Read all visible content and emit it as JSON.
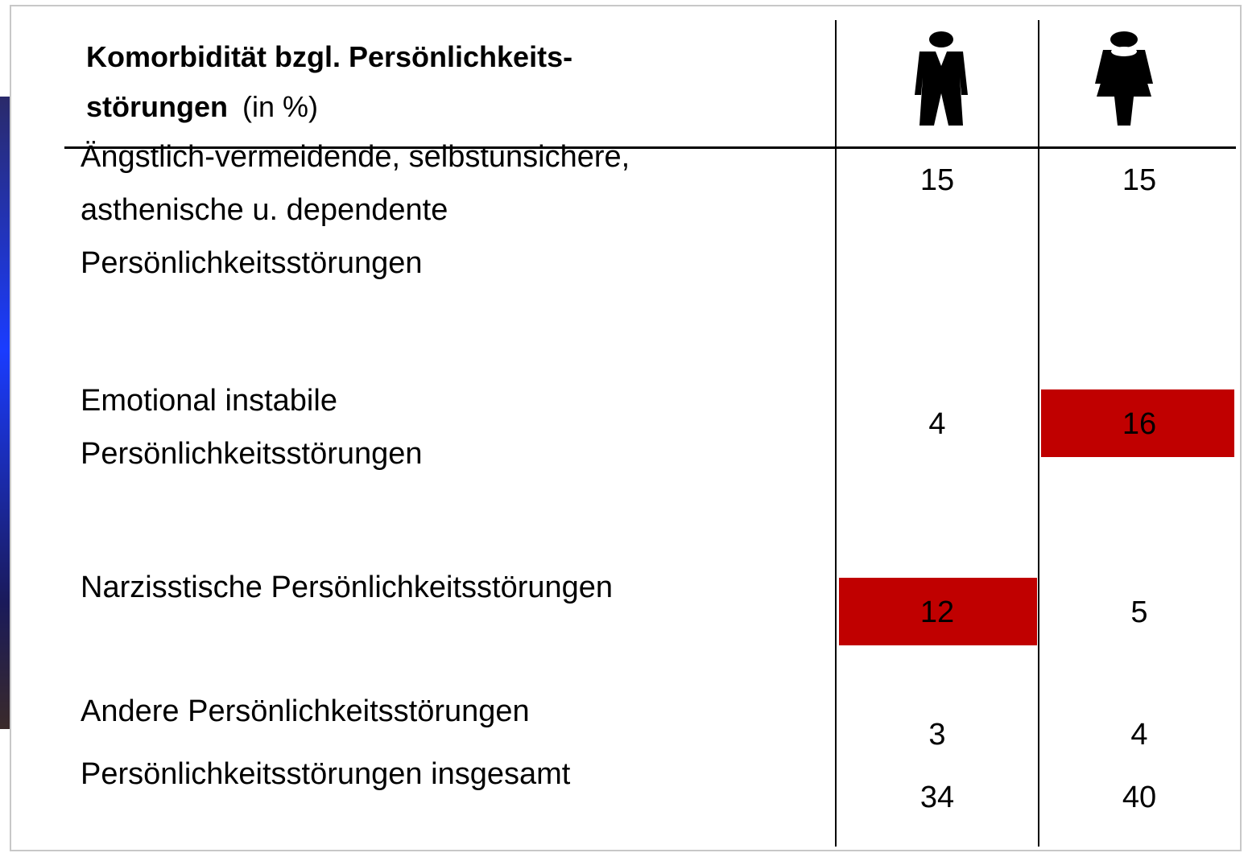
{
  "header": {
    "title_lines": [
      "Komorbidität bzgl. Persönlichkeits-",
      "störungen"
    ],
    "unit": "(in %)"
  },
  "table": {
    "highlight_color": "#c00000",
    "rows": [
      {
        "label_lines": [
          "Ängstlich-vermeidende, selbstunsichere,",
          "asthenische u. dependente",
          "Persönlichkeitsstörungen"
        ],
        "values": [
          15,
          15
        ],
        "highlight": []
      },
      {
        "label_lines": [
          "Emotional instabile",
          "Persönlichkeitsstörungen"
        ],
        "values": [
          4,
          16
        ],
        "highlight": [
          1
        ]
      },
      {
        "label_lines": [
          "Narzisstische Persönlichkeitsstörungen"
        ],
        "values": [
          12,
          5
        ],
        "highlight": [
          0
        ]
      },
      {
        "label_lines": [
          "Andere Persönlichkeitsstörungen"
        ],
        "values": [
          3,
          4
        ],
        "highlight": []
      },
      {
        "label_lines": [
          "Persönlichkeitsstörungen insgesamt"
        ],
        "values": [
          34,
          40
        ],
        "highlight": []
      }
    ]
  }
}
